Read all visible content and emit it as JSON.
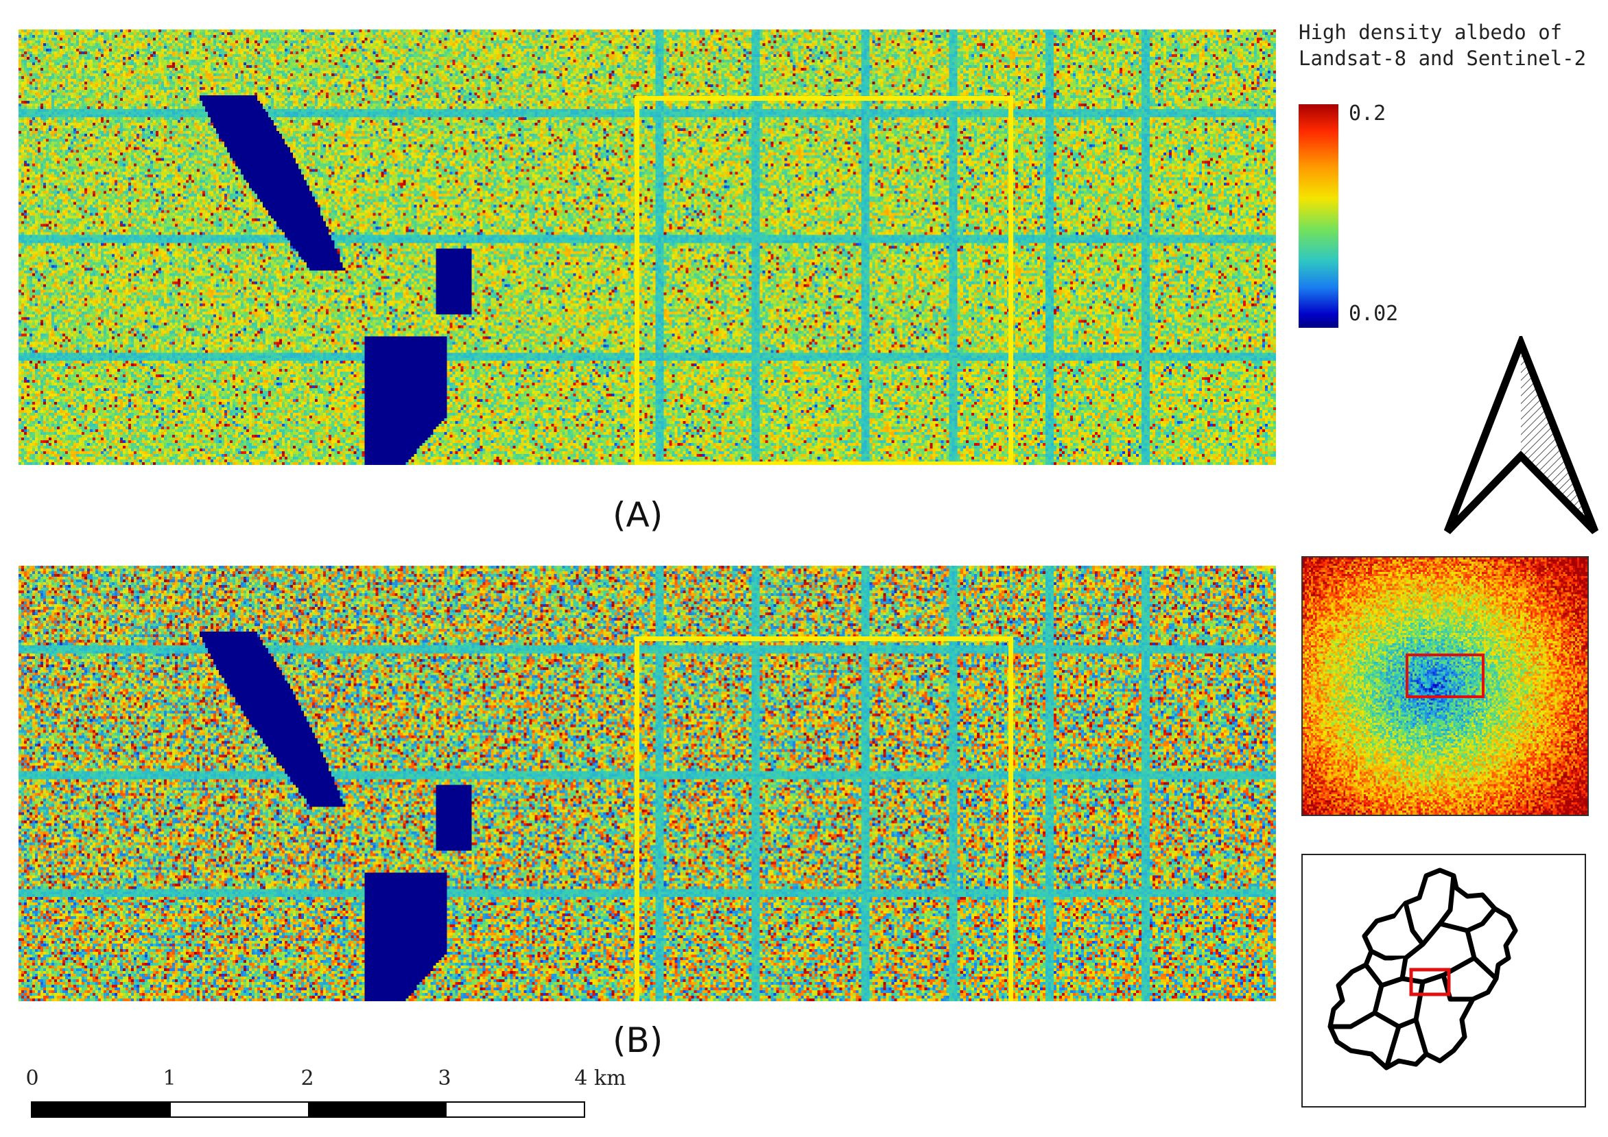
{
  "panels": [
    {
      "id": "A",
      "label": "(A)"
    },
    {
      "id": "B",
      "label": "(B)"
    }
  ],
  "legend": {
    "title_line1": "High density albedo of",
    "title_line2": "Landsat-8 and Sentinel-2",
    "max_label": "0.2",
    "min_label": "0.02",
    "value_max": 0.2,
    "value_min": 0.02,
    "colormap": [
      "#000080",
      "#0000c8",
      "#1a7df0",
      "#2fc7c2",
      "#74e25b",
      "#f4e400",
      "#ff9a00",
      "#ff2a00",
      "#a80000"
    ]
  },
  "scale_bar": {
    "labels": [
      "0",
      "1",
      "2",
      "3",
      "4 km"
    ],
    "unit": "km",
    "segments": 4
  },
  "colors": {
    "highlight_box": "#ffee00",
    "overview_box": "#e01010",
    "water": "#000080"
  },
  "icons": {
    "north_arrow": "north-arrow-icon",
    "locator": "beijing-district-outline"
  }
}
